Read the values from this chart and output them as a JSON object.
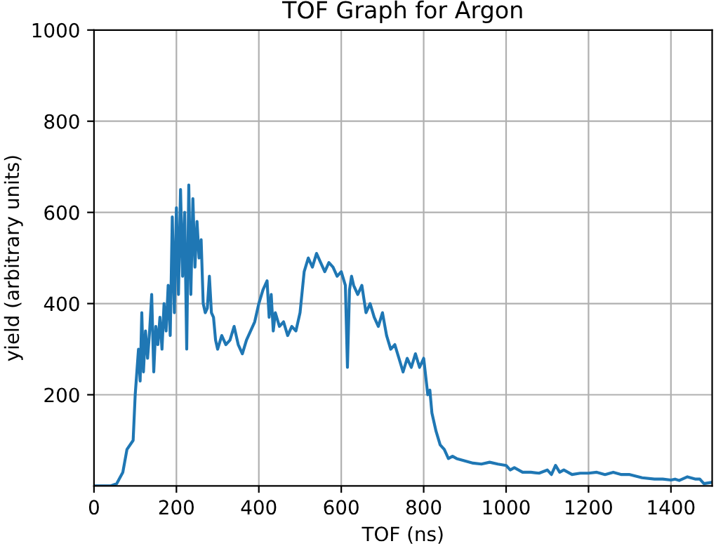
{
  "chart_data": {
    "type": "line",
    "title": "TOF Graph for Argon",
    "xlabel": "TOF (ns)",
    "ylabel": "yield (arbitrary units)",
    "xlim": [
      0,
      1500
    ],
    "ylim": [
      0,
      1000
    ],
    "xticks": [
      0,
      200,
      400,
      600,
      800,
      1000,
      1200,
      1400
    ],
    "yticks": [
      200,
      400,
      600,
      800,
      1000
    ],
    "grid": true,
    "series": [
      {
        "color": "#1f77b4",
        "x": [
          0,
          40,
          55,
          70,
          80,
          95,
          100,
          108,
          112,
          116,
          120,
          125,
          130,
          135,
          140,
          145,
          150,
          155,
          160,
          165,
          170,
          175,
          180,
          185,
          190,
          195,
          200,
          205,
          210,
          215,
          220,
          225,
          230,
          235,
          240,
          245,
          250,
          255,
          260,
          265,
          270,
          275,
          280,
          285,
          290,
          295,
          300,
          310,
          320,
          330,
          340,
          350,
          360,
          370,
          380,
          390,
          400,
          410,
          420,
          425,
          430,
          435,
          440,
          450,
          460,
          470,
          480,
          490,
          500,
          510,
          520,
          530,
          540,
          550,
          560,
          570,
          580,
          590,
          600,
          610,
          615,
          620,
          625,
          630,
          640,
          650,
          660,
          670,
          680,
          690,
          700,
          710,
          720,
          730,
          740,
          750,
          760,
          770,
          780,
          790,
          800,
          810,
          815,
          820,
          830,
          840,
          850,
          860,
          870,
          880,
          900,
          920,
          940,
          960,
          980,
          1000,
          1010,
          1020,
          1040,
          1060,
          1080,
          1100,
          1110,
          1120,
          1130,
          1140,
          1160,
          1180,
          1200,
          1220,
          1240,
          1260,
          1280,
          1300,
          1330,
          1360,
          1380,
          1400,
          1410,
          1420,
          1440,
          1460,
          1470,
          1480,
          1500
        ],
        "values": [
          0,
          0,
          5,
          30,
          80,
          100,
          200,
          300,
          230,
          380,
          250,
          340,
          280,
          340,
          420,
          250,
          350,
          310,
          370,
          300,
          400,
          340,
          440,
          330,
          590,
          380,
          610,
          420,
          650,
          460,
          600,
          300,
          660,
          420,
          630,
          480,
          580,
          500,
          540,
          400,
          380,
          390,
          460,
          380,
          370,
          320,
          300,
          330,
          310,
          320,
          350,
          310,
          290,
          320,
          340,
          360,
          400,
          430,
          450,
          370,
          420,
          340,
          380,
          350,
          360,
          330,
          350,
          340,
          380,
          470,
          500,
          480,
          510,
          490,
          470,
          490,
          480,
          460,
          470,
          440,
          260,
          430,
          460,
          440,
          420,
          440,
          380,
          400,
          370,
          350,
          380,
          330,
          300,
          310,
          280,
          250,
          280,
          260,
          290,
          260,
          280,
          200,
          210,
          160,
          120,
          90,
          80,
          60,
          65,
          60,
          55,
          50,
          48,
          52,
          48,
          45,
          35,
          40,
          30,
          30,
          28,
          35,
          25,
          45,
          30,
          35,
          25,
          28,
          28,
          30,
          25,
          30,
          25,
          25,
          18,
          15,
          15,
          13,
          15,
          12,
          20,
          15,
          15,
          5,
          8
        ]
      }
    ]
  }
}
